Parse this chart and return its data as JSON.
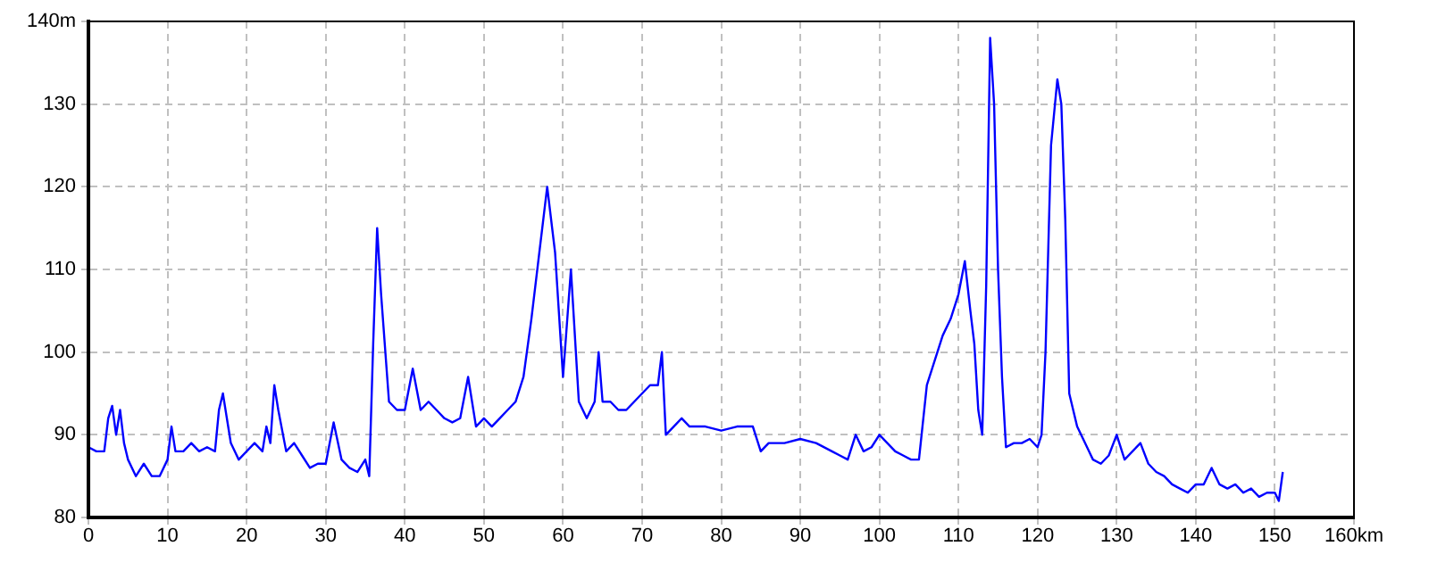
{
  "chart_data": {
    "type": "line",
    "xlim": [
      0,
      160
    ],
    "ylim": [
      80,
      140
    ],
    "xticks": [
      0,
      10,
      20,
      30,
      40,
      50,
      60,
      70,
      80,
      90,
      100,
      110,
      120,
      130,
      140,
      150,
      {
        "value": 160,
        "label": "160km"
      }
    ],
    "yticks": [
      80,
      90,
      100,
      110,
      120,
      130,
      {
        "value": 140,
        "label": "140m"
      }
    ],
    "grid": true,
    "legend": false,
    "marker": "none",
    "line_style": "solid",
    "series": [
      {
        "color": "#0000ff",
        "x": [
          0,
          1,
          2,
          2.5,
          3,
          3.5,
          4,
          4.5,
          5,
          6,
          7,
          8,
          9,
          10,
          10.5,
          11,
          12,
          13,
          14,
          15,
          16,
          16.5,
          17,
          18,
          19,
          20,
          21,
          22,
          22.5,
          23,
          23.5,
          24,
          25,
          26,
          27,
          28,
          29,
          30,
          31,
          32,
          33,
          34,
          35,
          35.5,
          36,
          36.5,
          37,
          38,
          39,
          40,
          41,
          42,
          43,
          44,
          45,
          46,
          47,
          48,
          49,
          50,
          51,
          52,
          53,
          54,
          55,
          56,
          57,
          58,
          59,
          60,
          61,
          62,
          63,
          64,
          64.5,
          65,
          66,
          67,
          68,
          69,
          70,
          71,
          72,
          72.5,
          73,
          74,
          75,
          76,
          77,
          78,
          80,
          82,
          84,
          85,
          86,
          88,
          90,
          92,
          94,
          95,
          96,
          97,
          98,
          99,
          100,
          101,
          102,
          103,
          104,
          105,
          106,
          107,
          108,
          109,
          110,
          110.8,
          111.5,
          112,
          112.5,
          113,
          113.5,
          114,
          114.5,
          115,
          115.5,
          116,
          117,
          118,
          119,
          120,
          120.5,
          121,
          121.7,
          122.5,
          123,
          123.5,
          124,
          125,
          126,
          127,
          128,
          129,
          130,
          131,
          132,
          133,
          134,
          135,
          136,
          137,
          138,
          139,
          140,
          141,
          142,
          143,
          144,
          145,
          146,
          147,
          148,
          149,
          150,
          150.5,
          151
        ],
        "values": [
          88.5,
          88,
          88,
          92,
          93.5,
          90,
          93,
          89,
          87,
          85,
          86.5,
          85,
          85,
          87,
          91,
          88,
          88,
          89,
          88,
          88.5,
          88,
          93,
          95,
          89,
          87,
          88,
          89,
          88,
          91,
          89,
          96,
          93,
          88,
          89,
          87.5,
          86,
          86.5,
          86.5,
          91.5,
          87,
          86,
          85.5,
          87,
          85,
          101,
          115,
          107,
          94,
          93,
          93,
          98,
          93,
          94,
          93,
          92,
          91.5,
          92,
          97,
          91,
          92,
          91,
          92,
          93,
          94,
          97,
          104,
          112,
          120,
          112,
          97,
          110,
          94,
          92,
          94,
          100,
          94,
          94,
          93,
          93,
          94,
          95,
          96,
          96,
          100,
          90,
          91,
          92,
          91,
          91,
          91,
          90.5,
          91,
          91,
          88,
          89,
          89,
          89.5,
          89,
          88,
          87.5,
          87,
          90,
          88,
          88.5,
          90,
          89,
          88,
          87.5,
          87,
          87,
          96,
          99,
          102,
          104,
          107,
          111,
          105,
          101,
          93,
          90,
          108,
          138,
          130,
          110,
          97,
          88.5,
          89,
          89,
          89.5,
          88.5,
          90,
          100,
          125,
          133,
          130,
          116,
          95,
          91,
          89,
          87,
          86.5,
          87.5,
          90,
          87,
          88,
          89,
          86.5,
          85.5,
          85,
          84,
          83.5,
          83,
          84,
          84,
          86,
          84,
          83.5,
          84,
          83,
          83.5,
          82.5,
          83,
          83,
          82,
          85.5
        ]
      }
    ]
  }
}
